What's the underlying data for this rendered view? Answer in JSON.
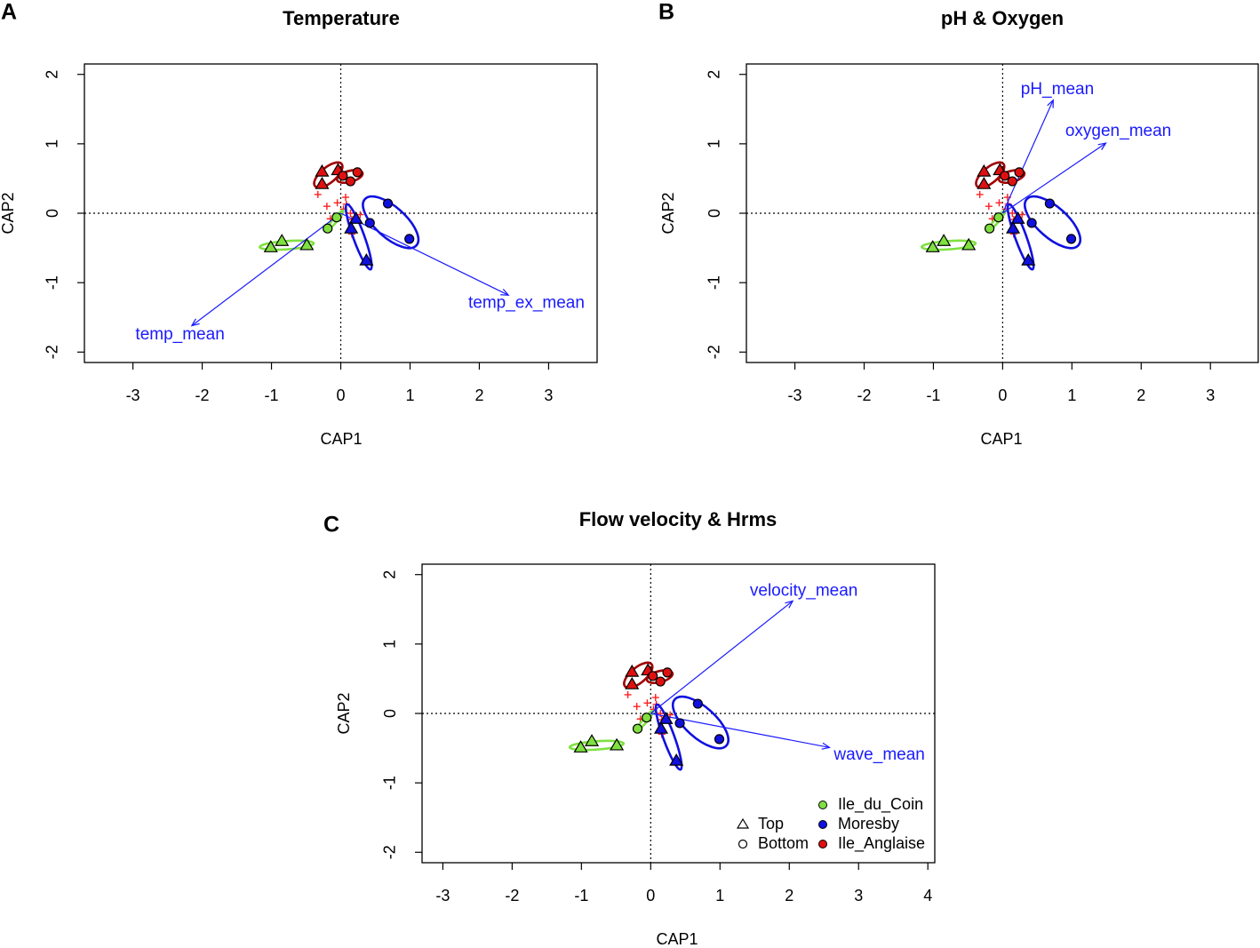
{
  "colors": {
    "Ile_du_Coin": "#7fe040",
    "Moresby": "#1010e0",
    "Ile_Anglaise": "#e01010",
    "vector": "#1a1aff",
    "species": "#ff2020"
  },
  "chart_data": {
    "type": "scatter",
    "shared": {
      "xlabel": "CAP1",
      "ylabel": "CAP2",
      "sites": [
        {
          "site": "Ile_Anglaise",
          "depth": "Top",
          "x": -0.27,
          "y": 0.6
        },
        {
          "site": "Ile_Anglaise",
          "depth": "Top",
          "x": -0.04,
          "y": 0.62
        },
        {
          "site": "Ile_Anglaise",
          "depth": "Top",
          "x": -0.27,
          "y": 0.42
        },
        {
          "site": "Ile_Anglaise",
          "depth": "Bottom",
          "x": 0.03,
          "y": 0.54
        },
        {
          "site": "Ile_Anglaise",
          "depth": "Bottom",
          "x": 0.14,
          "y": 0.46
        },
        {
          "site": "Ile_Anglaise",
          "depth": "Bottom",
          "x": 0.24,
          "y": 0.59
        },
        {
          "site": "Ile_du_Coin",
          "depth": "Top",
          "x": -1.01,
          "y": -0.49
        },
        {
          "site": "Ile_du_Coin",
          "depth": "Top",
          "x": -0.85,
          "y": -0.4
        },
        {
          "site": "Ile_du_Coin",
          "depth": "Top",
          "x": -0.49,
          "y": -0.46
        },
        {
          "site": "Ile_du_Coin",
          "depth": "Bottom",
          "x": -0.06,
          "y": -0.06
        },
        {
          "site": "Ile_du_Coin",
          "depth": "Bottom",
          "x": -0.19,
          "y": -0.22
        },
        {
          "site": "Moresby",
          "depth": "Top",
          "x": 0.22,
          "y": -0.08
        },
        {
          "site": "Moresby",
          "depth": "Top",
          "x": 0.15,
          "y": -0.22
        },
        {
          "site": "Moresby",
          "depth": "Top",
          "x": 0.37,
          "y": -0.68
        },
        {
          "site": "Moresby",
          "depth": "Bottom",
          "x": 0.68,
          "y": 0.14
        },
        {
          "site": "Moresby",
          "depth": "Bottom",
          "x": 0.42,
          "y": -0.14
        },
        {
          "site": "Moresby",
          "depth": "Bottom",
          "x": 0.99,
          "y": -0.37
        }
      ],
      "species": [
        {
          "x": -0.33,
          "y": 0.27
        },
        {
          "x": -0.2,
          "y": 0.1
        },
        {
          "x": -0.05,
          "y": 0.15
        },
        {
          "x": 0.07,
          "y": 0.23
        },
        {
          "x": 0.08,
          "y": 0.13
        },
        {
          "x": 0.04,
          "y": 0.06
        },
        {
          "x": 0.14,
          "y": 0.0
        },
        {
          "x": 0.28,
          "y": -0.02
        },
        {
          "x": -0.15,
          "y": -0.08
        },
        {
          "x": 0.16,
          "y": -0.3
        },
        {
          "x": -0.03,
          "y": -0.06
        },
        {
          "x": 0.16,
          "y": -0.09
        }
      ],
      "ellipses": [
        {
          "site": "Ile_Anglaise",
          "depth": "Top",
          "cx": -0.18,
          "cy": 0.55,
          "rx": 0.25,
          "ry": 0.11,
          "angle_deg": 40
        },
        {
          "site": "Ile_Anglaise",
          "depth": "Bottom",
          "cx": 0.13,
          "cy": 0.53,
          "rx": 0.19,
          "ry": 0.08,
          "angle_deg": 15
        },
        {
          "site": "Ile_du_Coin",
          "depth": "Top",
          "cx": -0.78,
          "cy": -0.46,
          "rx": 0.39,
          "ry": 0.06,
          "angle_deg": 4
        },
        {
          "site": "Ile_du_Coin",
          "depth": "Bottom",
          "cx": -0.08,
          "cy": -0.1,
          "rx": 0.18,
          "ry": 0.03,
          "angle_deg": 50
        },
        {
          "site": "Moresby",
          "depth": "Top",
          "cx": 0.26,
          "cy": -0.34,
          "rx": 0.5,
          "ry": 0.08,
          "angle_deg": -70
        },
        {
          "site": "Moresby",
          "depth": "Bottom",
          "cx": 0.72,
          "cy": -0.13,
          "rx": 0.5,
          "ry": 0.22,
          "angle_deg": -42
        }
      ]
    },
    "panels": [
      {
        "letter": "A",
        "title": "Temperature",
        "xlim": [
          -3.7,
          3.7
        ],
        "ylim": [
          -2.15,
          2.15
        ],
        "xticks": [
          -3,
          -2,
          -1,
          0,
          1,
          2,
          3
        ],
        "yticks": [
          -2,
          -1,
          0,
          1,
          2
        ],
        "vectors": [
          {
            "name": "temp_mean",
            "x": -2.15,
            "y": -1.62,
            "label_x": -2.32,
            "label_y": -1.75
          },
          {
            "name": "temp_ex_mean",
            "x": 2.42,
            "y": -1.18,
            "label_x": 2.68,
            "label_y": -1.3
          }
        ],
        "legend": null
      },
      {
        "letter": "B",
        "title": "pH & Oxygen",
        "xlim": [
          -3.7,
          3.69
        ],
        "ylim": [
          -2.15,
          2.15
        ],
        "xticks": [
          -3,
          -2,
          -1,
          0,
          1,
          2,
          3
        ],
        "yticks": [
          -2,
          -1,
          0,
          1,
          2
        ],
        "vectors": [
          {
            "name": "pH_mean",
            "x": 0.73,
            "y": 1.63,
            "label_x": 0.79,
            "label_y": 1.78
          },
          {
            "name": "oxygen_mean",
            "x": 1.49,
            "y": 1.01,
            "label_x": 1.67,
            "label_y": 1.18
          }
        ],
        "legend": null
      },
      {
        "letter": "C",
        "title": "Flow velocity & Hrms",
        "xlim": [
          -3.3,
          4.1
        ],
        "ylim": [
          -2.15,
          2.15
        ],
        "xticks": [
          -3,
          -2,
          -1,
          0,
          1,
          2,
          3,
          4
        ],
        "yticks": [
          -2,
          -1,
          0,
          1,
          2
        ],
        "vectors": [
          {
            "name": "velocity_mean",
            "x": 2.05,
            "y": 1.62,
            "label_x": 2.21,
            "label_y": 1.76
          },
          {
            "name": "wave_mean",
            "x": 2.58,
            "y": -0.49,
            "label_x": 3.3,
            "label_y": -0.6
          }
        ],
        "legend": {
          "position": "bottom-right",
          "shapes": [
            {
              "label": "Top",
              "shape": "triangle"
            },
            {
              "label": "Bottom",
              "shape": "circle"
            }
          ],
          "sites": [
            "Ile_du_Coin",
            "Moresby",
            "Ile_Anglaise"
          ]
        }
      }
    ]
  }
}
